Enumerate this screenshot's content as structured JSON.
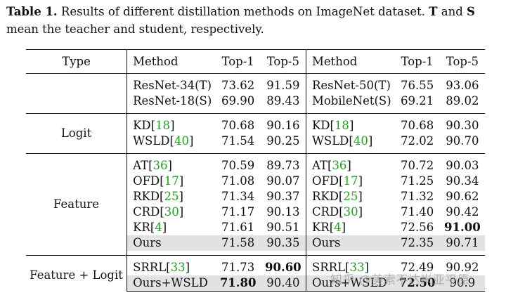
{
  "caption": {
    "label": "Table 1.",
    "text_1": " Results of different distillation methods on ImageNet dataset. ",
    "t": "T",
    "text_2": " and ",
    "s": "S",
    "text_3": " mean the teacher and student, respectively."
  },
  "header": {
    "type": "Type",
    "method_a": "Method",
    "top1_a": "Top-1",
    "top5_a": "Top-5",
    "method_b": "Method",
    "top1_b": "Top-1",
    "top5_b": "Top-5"
  },
  "groups": {
    "baseline": {
      "rows": [
        {
          "method_a": "ResNet-34(T)",
          "top1_a": "73.62",
          "top5_a": "91.59",
          "method_b": "ResNet-50(T)",
          "top1_b": "76.55",
          "top5_b": "93.06"
        },
        {
          "method_a": "ResNet-18(S)",
          "top1_a": "69.90",
          "top5_a": "89.43",
          "method_b": "MobileNet(S)",
          "top1_b": "69.21",
          "top5_b": "89.02"
        }
      ]
    },
    "logit": {
      "type": "Logit",
      "rows": [
        {
          "method_a": "KD",
          "cite_a": "18",
          "top1_a": "70.68",
          "top5_a": "90.16",
          "method_b": "KD",
          "cite_b": "18",
          "top1_b": "70.68",
          "top5_b": "90.30"
        },
        {
          "method_a": "WSLD",
          "cite_a": "40",
          "top1_a": "71.54",
          "top5_a": "90.25",
          "method_b": "WSLD",
          "cite_b": "40",
          "top1_b": "72.02",
          "top5_b": "90.70"
        }
      ]
    },
    "feature": {
      "type": "Feature",
      "rows": [
        {
          "method_a": "AT",
          "cite_a": "36",
          "top1_a": "70.59",
          "top5_a": "89.73",
          "method_b": "AT",
          "cite_b": "36",
          "top1_b": "70.72",
          "top5_b": "90.03"
        },
        {
          "method_a": "OFD",
          "cite_a": "17",
          "top1_a": "71.08",
          "top5_a": "90.07",
          "method_b": "OFD",
          "cite_b": "17",
          "top1_b": "71.25",
          "top5_b": "90.34"
        },
        {
          "method_a": "RKD",
          "cite_a": "25",
          "top1_a": "71.34",
          "top5_a": "90.37",
          "method_b": "RKD",
          "cite_b": "25",
          "top1_b": "71.32",
          "top5_b": "90.62"
        },
        {
          "method_a": "CRD",
          "cite_a": "30",
          "top1_a": "71.17",
          "top5_a": "90.13",
          "method_b": "CRD",
          "cite_b": "30",
          "top1_b": "71.40",
          "top5_b": "90.42"
        },
        {
          "method_a": "KR",
          "cite_a": "4",
          "top1_a": "71.61",
          "top5_a": "90.51",
          "method_b": "KR",
          "cite_b": "4",
          "top1_b": "72.56",
          "top5_b": "91.00"
        },
        {
          "method_a": "Ours",
          "top1_a": "71.58",
          "top5_a": "90.35",
          "method_b": "Ours",
          "top1_b": "72.35",
          "top5_b": "90.71"
        }
      ]
    },
    "feature_logit": {
      "type": "Feature + Logit",
      "rows": [
        {
          "method_a": "SRRL",
          "cite_a": "33",
          "top1_a": "71.73",
          "top5_a": "90.60",
          "method_b": "SRRL",
          "cite_b": "33",
          "top1_b": "72.49",
          "top5_b": "90.92"
        },
        {
          "method_a": "Ours+WSLD",
          "top1_a": "71.80",
          "top5_a": "90.40",
          "method_b": "Ours+WSLD",
          "top1_b": "72.50",
          "top5_b": "90.9"
        }
      ]
    }
  },
  "watermark": "知乎 @美索不达米亚平原"
}
